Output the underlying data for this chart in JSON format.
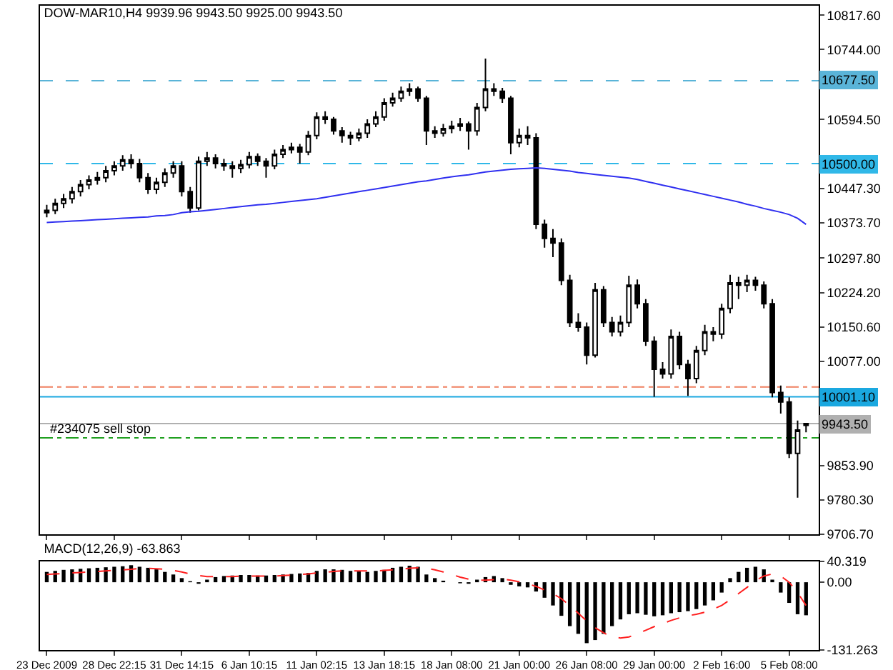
{
  "chart_data": [
    {
      "type": "candlestick",
      "title": "DOW-MAR10,H4 9939.96 9943.50 9925.00 9943.50",
      "tick_labels": "y",
      "grid": false,
      "categories": [
        "23 Dec 2009",
        null,
        null,
        null,
        null,
        null,
        null,
        null,
        "28 Dec 22:15",
        null,
        null,
        null,
        null,
        null,
        null,
        null,
        "31 Dec 14:15",
        null,
        null,
        null,
        null,
        null,
        null,
        null,
        "6 Jan 10:15",
        null,
        null,
        null,
        null,
        null,
        null,
        null,
        "11 Jan 02:15",
        null,
        null,
        null,
        null,
        null,
        null,
        null,
        "13 Jan 18:15",
        null,
        null,
        null,
        null,
        null,
        null,
        null,
        "18 Jan 08:00",
        null,
        null,
        null,
        null,
        null,
        null,
        null,
        "21 Jan 00:00",
        null,
        null,
        null,
        null,
        null,
        null,
        null,
        "26 Jan 08:00",
        null,
        null,
        null,
        null,
        null,
        null,
        null,
        "29 Jan 00:00",
        null,
        null,
        null,
        null,
        null,
        null,
        null,
        "2 Feb 16:00",
        null,
        null,
        null,
        null,
        null,
        null,
        null,
        "5 Feb 08:00",
        null,
        null
      ],
      "ohlc": [
        [
          10395,
          10412,
          10385,
          10400
        ],
        [
          10400,
          10425,
          10392,
          10415
        ],
        [
          10415,
          10435,
          10405,
          10425
        ],
        [
          10425,
          10450,
          10415,
          10440
        ],
        [
          10440,
          10465,
          10430,
          10455
        ],
        [
          10455,
          10475,
          10445,
          10465
        ],
        [
          10465,
          10482,
          10455,
          10470
        ],
        [
          10470,
          10495,
          10460,
          10485
        ],
        [
          10485,
          10505,
          10475,
          10495
        ],
        [
          10495,
          10518,
          10485,
          10508
        ],
        [
          10508,
          10520,
          10490,
          10500
        ],
        [
          10500,
          10510,
          10460,
          10470
        ],
        [
          10470,
          10480,
          10435,
          10445
        ],
        [
          10445,
          10470,
          10435,
          10460
        ],
        [
          10460,
          10490,
          10450,
          10480
        ],
        [
          10480,
          10505,
          10470,
          10495
        ],
        [
          10495,
          10505,
          10430,
          10440
        ],
        [
          10440,
          10450,
          10395,
          10405
        ],
        [
          10405,
          10515,
          10400,
          10505
        ],
        [
          10505,
          10525,
          10495,
          10512
        ],
        [
          10512,
          10520,
          10490,
          10500
        ],
        [
          10500,
          10510,
          10485,
          10495
        ],
        [
          10495,
          10505,
          10470,
          10490
        ],
        [
          10490,
          10508,
          10480,
          10498
        ],
        [
          10498,
          10525,
          10490,
          10515
        ],
        [
          10515,
          10522,
          10495,
          10505
        ],
        [
          10505,
          10512,
          10470,
          10495
        ],
        [
          10495,
          10530,
          10488,
          10520
        ],
        [
          10520,
          10540,
          10512,
          10530
        ],
        [
          10530,
          10545,
          10522,
          10535
        ],
        [
          10535,
          10542,
          10500,
          10525
        ],
        [
          10525,
          10570,
          10518,
          10560
        ],
        [
          10560,
          10610,
          10552,
          10600
        ],
        [
          10600,
          10612,
          10585,
          10595
        ],
        [
          10595,
          10600,
          10562,
          10570
        ],
        [
          10570,
          10578,
          10545,
          10560
        ],
        [
          10560,
          10568,
          10540,
          10555
        ],
        [
          10555,
          10575,
          10548,
          10565
        ],
        [
          10565,
          10595,
          10555,
          10585
        ],
        [
          10585,
          10612,
          10578,
          10600
        ],
        [
          10600,
          10640,
          10592,
          10630
        ],
        [
          10630,
          10652,
          10622,
          10640
        ],
        [
          10640,
          10665,
          10632,
          10655
        ],
        [
          10655,
          10672,
          10645,
          10660
        ],
        [
          10660,
          10665,
          10632,
          10640
        ],
        [
          10640,
          10645,
          10540,
          10570
        ],
        [
          10570,
          10580,
          10555,
          10565
        ],
        [
          10565,
          10585,
          10558,
          10575
        ],
        [
          10575,
          10592,
          10565,
          10580
        ],
        [
          10580,
          10598,
          10570,
          10585
        ],
        [
          10585,
          10590,
          10530,
          10570
        ],
        [
          10570,
          10630,
          10560,
          10620
        ],
        [
          10620,
          10725,
          10612,
          10660
        ],
        [
          10660,
          10672,
          10645,
          10655
        ],
        [
          10655,
          10662,
          10630,
          10640
        ],
        [
          10640,
          10645,
          10520,
          10545
        ],
        [
          10545,
          10575,
          10535,
          10560
        ],
        [
          10560,
          10580,
          10540,
          10555
        ],
        [
          10555,
          10565,
          10360,
          10370
        ],
        [
          10370,
          10380,
          10320,
          10340
        ],
        [
          10340,
          10360,
          10300,
          10330
        ],
        [
          10330,
          10340,
          10240,
          10250
        ],
        [
          10250,
          10262,
          10150,
          10160
        ],
        [
          10160,
          10180,
          10140,
          10150
        ],
        [
          10150,
          10160,
          10070,
          10090
        ],
        [
          10090,
          10245,
          10085,
          10230
        ],
        [
          10230,
          10238,
          10150,
          10160
        ],
        [
          10160,
          10172,
          10130,
          10140
        ],
        [
          10140,
          10175,
          10130,
          10160
        ],
        [
          10160,
          10260,
          10150,
          10240
        ],
        [
          10240,
          10252,
          10190,
          10200
        ],
        [
          10200,
          10210,
          10110,
          10120
        ],
        [
          10120,
          10130,
          10001,
          10060
        ],
        [
          10060,
          10075,
          10040,
          10050
        ],
        [
          10050,
          10145,
          10040,
          10130
        ],
        [
          10130,
          10140,
          10060,
          10070
        ],
        [
          10070,
          10080,
          10003,
          10040
        ],
        [
          10040,
          10110,
          10030,
          10100
        ],
        [
          10100,
          10155,
          10090,
          10140
        ],
        [
          10140,
          10150,
          10120,
          10135
        ],
        [
          10135,
          10200,
          10125,
          10190
        ],
        [
          10190,
          10262,
          10180,
          10245
        ],
        [
          10245,
          10258,
          10210,
          10240
        ],
        [
          10240,
          10262,
          10225,
          10250
        ],
        [
          10250,
          10258,
          10228,
          10240
        ],
        [
          10240,
          10248,
          10190,
          10200
        ],
        [
          10200,
          10210,
          10000,
          10010
        ],
        [
          10010,
          10025,
          9965,
          9990
        ],
        [
          9990,
          10000,
          9870,
          9880
        ],
        [
          9880,
          9950,
          9785,
          9930
        ],
        [
          9939.96,
          9943.5,
          9925,
          9943.5
        ]
      ],
      "series": [
        {
          "type": "line",
          "color": "#3030f0",
          "values": [
            10374,
            10375,
            10376,
            10377,
            10378,
            10379,
            10380,
            10381,
            10382,
            10383,
            10384,
            10385,
            10386,
            10388,
            10389,
            10391,
            10395,
            10397,
            10398,
            10400,
            10402,
            10404,
            10406,
            10408,
            10410,
            10412,
            10413,
            10415,
            10417,
            10419,
            10421,
            10423,
            10425,
            10428,
            10431,
            10434,
            10437,
            10440,
            10443,
            10446,
            10449,
            10452,
            10455,
            10458,
            10461,
            10463,
            10466,
            10469,
            10472,
            10474,
            10476,
            10479,
            10482,
            10484,
            10486,
            10488,
            10489,
            10490,
            10491,
            10490,
            10488,
            10486,
            10484,
            10481,
            10479,
            10477,
            10475,
            10473,
            10471,
            10469,
            10466,
            10462,
            10458,
            10454,
            10450,
            10446,
            10442,
            10438,
            10434,
            10430,
            10426,
            10422,
            10418,
            10413,
            10409,
            10404,
            10400,
            10396,
            10391,
            10383,
            10370
          ]
        }
      ],
      "ylim": [
        9706.7,
        10838
      ],
      "yticks": [
        {
          "value": 10817.6,
          "label": "10817.60"
        },
        {
          "value": 10744,
          "label": "10744.00"
        },
        {
          "value": 10594.5,
          "label": "10594.50"
        },
        {
          "value": 10447.3,
          "label": "10447.30"
        },
        {
          "value": 10373.7,
          "label": "10373.70"
        },
        {
          "value": 10297.8,
          "label": "10297.80"
        },
        {
          "value": 10224.2,
          "label": "10224.20"
        },
        {
          "value": 10150.6,
          "label": "10150.60"
        },
        {
          "value": 10077,
          "label": "10077.00"
        },
        {
          "value": 9853.9,
          "label": "9853.90"
        },
        {
          "value": 9780.3,
          "label": "9780.30"
        },
        {
          "value": 9706.7,
          "label": "9706.70"
        }
      ],
      "ref_lines": [
        {
          "axis": "y",
          "value": 10677.5,
          "label": "10677.50",
          "color": "#5ab4d8",
          "line_style": "dashed"
        },
        {
          "axis": "y",
          "value": 10500,
          "label": "10500.00",
          "color": "#30b8e8",
          "line_style": "dashed"
        },
        {
          "axis": "y",
          "value": 10001.1,
          "label": "10001.10",
          "color": "#1aa8e0",
          "line_style": "solid"
        },
        {
          "axis": "y",
          "value": 10022,
          "color": "#f08060",
          "line_style": "dashdot"
        },
        {
          "axis": "y",
          "value": 9943.5,
          "label": "9943.50",
          "color": "#b0b0b0",
          "line_style": "solid"
        },
        {
          "axis": "y",
          "value": 9913,
          "color": "#20a020",
          "line_style": "dashdot"
        }
      ],
      "annotations": [
        {
          "text": "#234075 sell stop",
          "x": "23 Dec 2009",
          "y": 9913
        }
      ]
    },
    {
      "type": "bar",
      "title": "MACD(12,26,9) -63.863",
      "grid": false,
      "categories": [
        "23 Dec 2009",
        null,
        null,
        null,
        null,
        null,
        null,
        null,
        "28 Dec 22:15",
        null,
        null,
        null,
        null,
        null,
        null,
        null,
        "31 Dec 14:15",
        null,
        null,
        null,
        null,
        null,
        null,
        null,
        "6 Jan 10:15",
        null,
        null,
        null,
        null,
        null,
        null,
        null,
        "11 Jan 02:15",
        null,
        null,
        null,
        null,
        null,
        null,
        null,
        "13 Jan 18:15",
        null,
        null,
        null,
        null,
        null,
        null,
        null,
        "18 Jan 08:00",
        null,
        null,
        null,
        null,
        null,
        null,
        null,
        "21 Jan 00:00",
        null,
        null,
        null,
        null,
        null,
        null,
        null,
        "26 Jan 08:00",
        null,
        null,
        null,
        null,
        null,
        null,
        null,
        "29 Jan 00:00",
        null,
        null,
        null,
        null,
        null,
        null,
        null,
        "2 Feb 16:00",
        null,
        null,
        null,
        null,
        null,
        null,
        null,
        "5 Feb 08:00",
        null,
        null
      ],
      "series": [
        {
          "color": "#000000",
          "values": [
            20,
            22,
            24,
            25,
            26,
            27,
            28,
            29,
            30,
            31,
            33,
            30,
            28,
            25,
            20,
            15,
            8,
            2,
            -3,
            5,
            10,
            12,
            13,
            14,
            14,
            13,
            13,
            14,
            15,
            16,
            17,
            18,
            22,
            25,
            25,
            24,
            22,
            21,
            20,
            22,
            24,
            28,
            30,
            32,
            30,
            15,
            8,
            3,
            0,
            -2,
            -3,
            5,
            10,
            12,
            8,
            -5,
            -8,
            -10,
            -18,
            -30,
            -45,
            -65,
            -85,
            -100,
            -118,
            -112,
            -100,
            -85,
            -72,
            -62,
            -60,
            -63,
            -66,
            -64,
            -60,
            -58,
            -56,
            -52,
            -45,
            -35,
            -20,
            8,
            20,
            28,
            30,
            25,
            5,
            -20,
            -40,
            -62,
            -64
          ]
        },
        {
          "type": "line",
          "color": "#ff2020",
          "line_style": "dashed",
          "values": [
            15,
            16,
            17,
            18,
            19,
            20,
            21,
            22,
            23,
            24,
            25,
            27,
            27,
            26,
            25,
            23,
            20,
            16,
            13,
            11,
            11,
            11,
            11,
            12,
            12,
            12,
            12,
            12,
            13,
            14,
            15,
            16,
            18,
            19,
            21,
            22,
            22,
            22,
            22,
            22,
            23,
            24,
            25,
            27,
            28,
            27,
            24,
            20,
            15,
            10,
            6,
            4,
            4,
            5,
            6,
            4,
            1,
            -3,
            -8,
            -15,
            -22,
            -32,
            -45,
            -60,
            -75,
            -88,
            -98,
            -106,
            -108,
            -106,
            -100,
            -93,
            -86,
            -80,
            -74,
            -69,
            -65,
            -62,
            -58,
            -52,
            -45,
            -34,
            -22,
            -10,
            3,
            12,
            16,
            12,
            0,
            -20,
            -45
          ]
        }
      ],
      "ylim": [
        -131.263,
        40.319
      ],
      "yticks": [
        40.319,
        {
          "value": 0,
          "label": "0.00"
        },
        -131.263
      ]
    }
  ]
}
